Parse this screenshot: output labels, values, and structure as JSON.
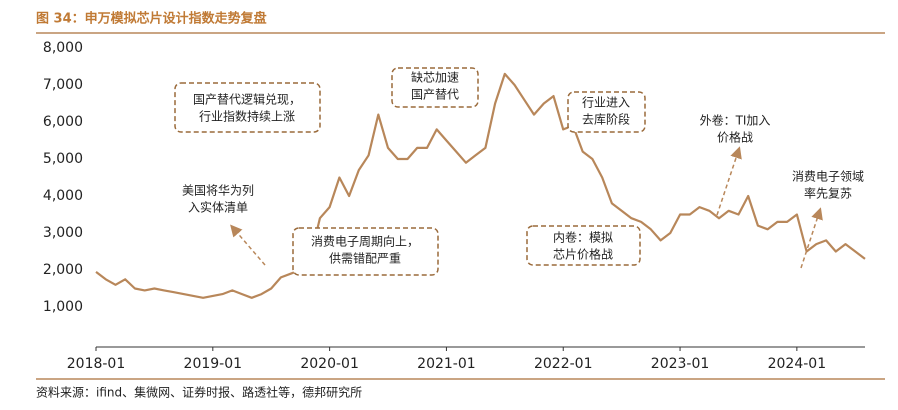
{
  "chart_data": {
    "type": "line",
    "title": "图 34：申万模拟芯片设计指数走势复盘",
    "source": "资料来源：ifind、集微网、证券时报、路透社等，德邦研究所",
    "color": "#b8875a",
    "x": [
      "2018-01",
      "2018-02",
      "2018-03",
      "2018-04",
      "2018-05",
      "2018-06",
      "2018-07",
      "2018-08",
      "2018-09",
      "2018-10",
      "2018-11",
      "2018-12",
      "2019-01",
      "2019-02",
      "2019-03",
      "2019-04",
      "2019-05",
      "2019-06",
      "2019-07",
      "2019-08",
      "2019-09",
      "2019-10",
      "2019-11",
      "2019-12",
      "2020-01",
      "2020-02",
      "2020-03",
      "2020-04",
      "2020-05",
      "2020-06",
      "2020-07",
      "2020-08",
      "2020-09",
      "2020-10",
      "2020-11",
      "2020-12",
      "2021-01",
      "2021-02",
      "2021-03",
      "2021-04",
      "2021-05",
      "2021-06",
      "2021-07",
      "2021-08",
      "2021-09",
      "2021-10",
      "2021-11",
      "2021-12",
      "2022-01",
      "2022-02",
      "2022-03",
      "2022-04",
      "2022-05",
      "2022-06",
      "2022-07",
      "2022-08",
      "2022-09",
      "2022-10",
      "2022-11",
      "2022-12",
      "2023-01",
      "2023-02",
      "2023-03",
      "2023-04",
      "2023-05",
      "2023-06",
      "2023-07",
      "2023-08",
      "2023-09",
      "2023-10",
      "2023-11",
      "2023-12",
      "2024-01",
      "2024-02",
      "2024-03",
      "2024-04",
      "2024-05",
      "2024-06",
      "2024-07",
      "2024-08"
    ],
    "values": [
      1950,
      1750,
      1600,
      1750,
      1500,
      1450,
      1500,
      1450,
      1400,
      1350,
      1300,
      1250,
      1300,
      1350,
      1450,
      1350,
      1250,
      1350,
      1500,
      1800,
      1900,
      2000,
      2300,
      3400,
      3700,
      4500,
      4000,
      4700,
      5100,
      6200,
      5300,
      5000,
      5000,
      5300,
      5300,
      5800,
      5500,
      5200,
      4900,
      5100,
      5300,
      6500,
      7300,
      7000,
      6600,
      6200,
      6500,
      6700,
      5800,
      5900,
      5200,
      5000,
      4500,
      3800,
      3600,
      3400,
      3300,
      3100,
      2800,
      3000,
      3500,
      3500,
      3700,
      3600,
      3400,
      3600,
      3500,
      4000,
      3200,
      3100,
      3300,
      3300,
      3500,
      2500,
      2700,
      2800,
      2500,
      2700,
      2500,
      2300
    ],
    "xlim": [
      "2018-01",
      "2024-08"
    ],
    "xticks": [
      "2018-01",
      "2019-01",
      "2020-01",
      "2021-01",
      "2022-01",
      "2023-01",
      "2024-01"
    ],
    "ylim": [
      0,
      8000
    ],
    "yticks": [
      {
        "value": 1000,
        "label": "1,000"
      },
      {
        "value": 2000,
        "label": "2,000"
      },
      {
        "value": 3000,
        "label": "3,000"
      },
      {
        "value": 4000,
        "label": "4,000"
      },
      {
        "value": 5000,
        "label": "5,000"
      },
      {
        "value": 6000,
        "label": "6,000"
      },
      {
        "value": 7000,
        "label": "7,000"
      },
      {
        "value": 8000,
        "label": "8,000"
      }
    ],
    "annotations": [
      {
        "lines": [
          "美国将华为列",
          "入实体清单"
        ]
      },
      {
        "lines": [
          "国产替代逻辑兑现，",
          "行业指数持续上涨"
        ]
      },
      {
        "lines": [
          "缺芯加速",
          "国产替代"
        ]
      },
      {
        "lines": [
          "行业进入",
          "去库阶段"
        ]
      },
      {
        "lines": [
          "外卷：TI加入",
          "价格战"
        ]
      },
      {
        "lines": [
          "消费电子领域",
          "率先复苏"
        ]
      },
      {
        "lines": [
          "消费电子周期向上，",
          "供需错配严重"
        ]
      },
      {
        "lines": [
          "内卷：模拟",
          "芯片价格战"
        ]
      }
    ]
  }
}
